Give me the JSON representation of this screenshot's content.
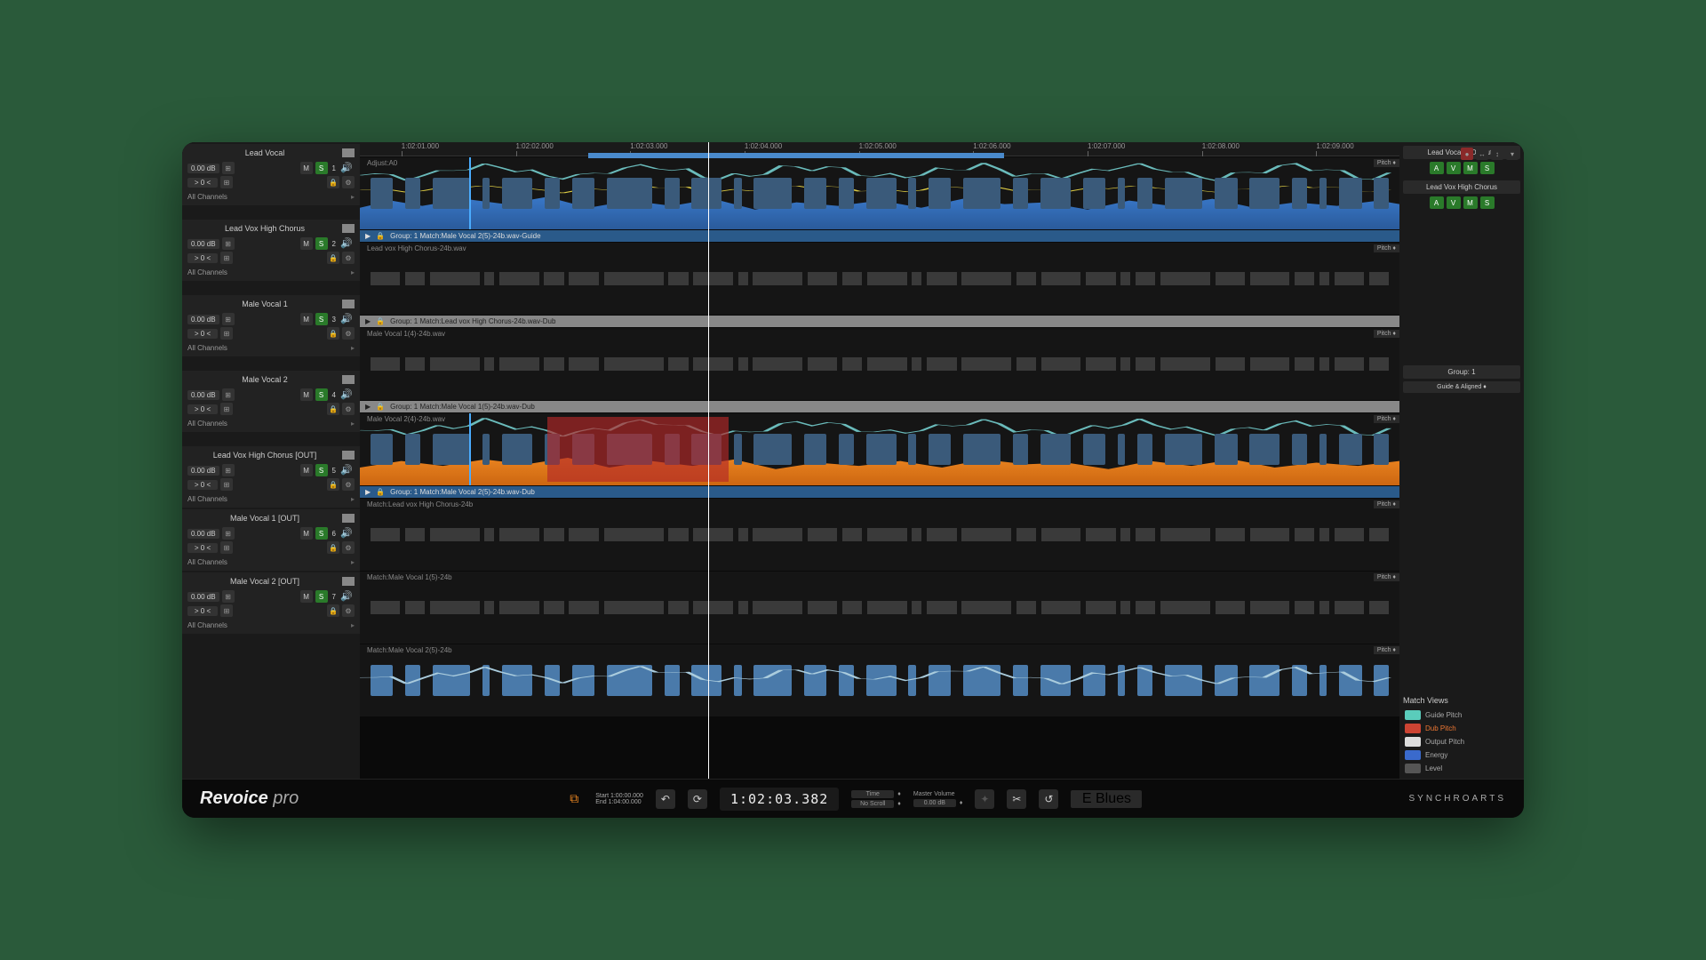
{
  "ruler": {
    "ticks": [
      "1:02:01.000",
      "1:02:02.000",
      "1:02:03.000",
      "1:02:04.000",
      "1:02:05.000",
      "1:02:06.000",
      "1:02:07.000",
      "1:02:08.000",
      "1:02:09.000"
    ],
    "scrub_start_pct": 22,
    "scrub_width_pct": 40,
    "playhead_pct": 33.5
  },
  "tracks": [
    {
      "name": "Lead Vocal",
      "gain": "0.00 dB",
      "pan": "> 0 <",
      "m": "M",
      "s": "S",
      "num": "1",
      "channels": "All Channels",
      "clip_label": "Adjust:A0",
      "group_bar": "Group: 1   Match:Male Vocal  2(5)-24b.wav-Guide",
      "group_style": "blue",
      "wave": "blue",
      "height": "h1"
    },
    {
      "name": "Lead Vox High Chorus",
      "gain": "0.00 dB",
      "pan": "> 0 <",
      "m": "M",
      "s": "S",
      "num": "2",
      "channels": "All Channels",
      "clip_label": "Lead vox High Chorus-24b.wav",
      "group_bar": "Group: 1   Match:Lead vox High Chorus-24b.wav-Dub",
      "group_style": "grey",
      "wave": "grey",
      "height": "h2"
    },
    {
      "name": "Male Vocal  1",
      "gain": "0.00 dB",
      "pan": "> 0 <",
      "m": "M",
      "s": "S",
      "num": "3",
      "channels": "All Channels",
      "clip_label": "Male Vocal  1(4)-24b.wav",
      "group_bar": "Group: 1   Match:Male Vocal  1(5)-24b.wav-Dub",
      "group_style": "grey",
      "wave": "grey",
      "height": "h2"
    },
    {
      "name": "Male Vocal  2",
      "gain": "0.00 dB",
      "pan": "> 0 <",
      "m": "M",
      "s": "S",
      "num": "4",
      "channels": "All Channels",
      "clip_label": "Male Vocal  2(4)-24b.wav",
      "group_bar": "Group: 1   Match:Male Vocal  2(5)-24b.wav-Dub",
      "group_style": "blue",
      "wave": "orange",
      "height": "h2"
    },
    {
      "name": "Lead Vox High Chorus  [OUT]",
      "gain": "0.00 dB",
      "pan": "> 0 <",
      "m": "M",
      "s": "S",
      "num": "5",
      "channels": "All Channels",
      "clip_label": "Match:Lead vox High Chorus-24b",
      "group_bar": "",
      "group_style": "",
      "wave": "grey",
      "height": "h2"
    },
    {
      "name": "Male Vocal  1  [OUT]",
      "gain": "0.00 dB",
      "pan": "> 0 <",
      "m": "M",
      "s": "S",
      "num": "6",
      "channels": "All Channels",
      "clip_label": "Match:Male Vocal  1(5)-24b",
      "group_bar": "",
      "group_style": "",
      "wave": "grey",
      "height": "h2"
    },
    {
      "name": "Male Vocal  2  [OUT]",
      "gain": "0.00 dB",
      "pan": "> 0 <",
      "m": "M",
      "s": "S",
      "num": "7",
      "channels": "All Channels",
      "clip_label": "Match:Male Vocal  2(5)-24b",
      "group_bar": "",
      "group_style": "",
      "wave": "blocks",
      "height": "h2"
    }
  ],
  "pitch_label": "Pitch  ♦",
  "right": {
    "outputs": [
      {
        "title": "Lead Vocal + Outputs",
        "btns": [
          "A",
          "V",
          "M",
          "S"
        ]
      },
      {
        "title": "Lead Vox High Chorus",
        "btns": [
          "A",
          "V",
          "M",
          "S"
        ]
      }
    ],
    "group_title": "Group: 1",
    "group_sel": "Guide & Aligned  ♦",
    "match_views_label": "Match Views",
    "match_views": [
      {
        "label": "Guide Pitch",
        "color": "cyan"
      },
      {
        "label": "Dub Pitch",
        "color": "red",
        "orange": true
      },
      {
        "label": "Output Pitch",
        "color": "white"
      },
      {
        "label": "Energy",
        "color": "blue"
      },
      {
        "label": "Level",
        "color": "grey"
      }
    ]
  },
  "transport": {
    "brand_bold": "Revoice",
    "brand_light": "pro",
    "start": "Start  1:00:00.000",
    "end": "End    1:04:00.000",
    "time": "1:02:03.382",
    "time_label": "Time",
    "scroll_label": "No Scroll",
    "master_label": "Master Volume",
    "master_val": "0.00 dB",
    "preset": "E Blues",
    "company": "SYNCHROARTS"
  },
  "colors": {
    "pitch_stroke": "#6abbbb",
    "yellow_stroke": "#ddcc44"
  },
  "blocks": [
    3,
    2,
    5,
    1,
    4,
    2,
    3,
    6,
    2,
    4,
    1,
    5,
    3,
    2,
    4,
    1,
    3,
    5,
    2,
    4,
    3,
    1,
    2,
    5,
    3,
    4,
    2,
    1,
    3,
    2
  ]
}
